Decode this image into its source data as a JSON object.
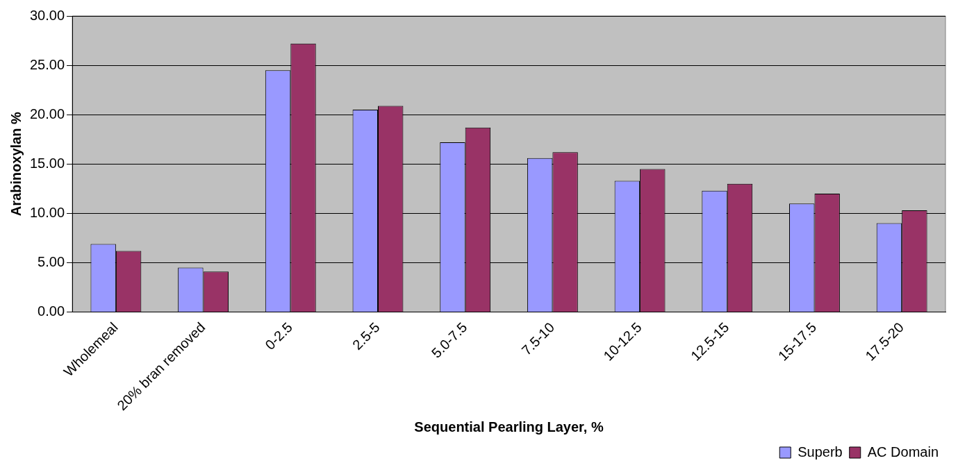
{
  "chart_data": {
    "type": "bar",
    "xlabel": "Sequential Pearling Layer, %",
    "ylabel": "Arabinoxylan %",
    "categories": [
      "Wholemeal",
      "20% bran removed",
      "0-2.5",
      "2.5-5",
      "5.0-7.5",
      "7.5-10",
      "10-12.5",
      "12.5-15",
      "15-17.5",
      "17.5-20"
    ],
    "series": [
      {
        "name": "Superb",
        "color": "#9999ff",
        "values": [
          6.9,
          4.5,
          24.5,
          20.5,
          17.2,
          15.6,
          13.3,
          12.3,
          11.0,
          9.0
        ]
      },
      {
        "name": "AC Domain",
        "color": "#993366",
        "values": [
          6.2,
          4.1,
          27.2,
          20.9,
          18.7,
          16.2,
          14.5,
          13.0,
          12.0,
          10.3
        ]
      }
    ],
    "ylim": [
      0,
      30
    ],
    "yticks": [
      {
        "value": 0,
        "label": "0.00"
      },
      {
        "value": 5,
        "label": "5.00"
      },
      {
        "value": 10,
        "label": "10.00"
      },
      {
        "value": 15,
        "label": "15.00"
      },
      {
        "value": 20,
        "label": "20.00"
      },
      {
        "value": 25,
        "label": "25.00"
      },
      {
        "value": 30,
        "label": "30.00"
      }
    ],
    "grid": "y",
    "legend": "bottom right"
  }
}
